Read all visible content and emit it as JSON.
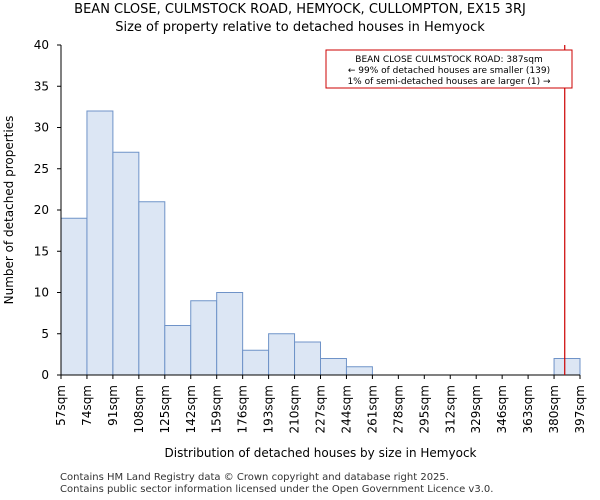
{
  "title": "BEAN CLOSE, CULMSTOCK ROAD, HEMYOCK, CULLOMPTON, EX15 3RJ",
  "subtitle": "Size of property relative to detached houses in Hemyock",
  "footer": {
    "line1": "Contains HM Land Registry data © Crown copyright and database right 2025.",
    "line2": "Contains public sector information licensed under the Open Government Licence v3.0."
  },
  "colors": {
    "bar_fill": "#dce6f4",
    "bar_stroke": "#6f93c8",
    "marker": "#cc0000",
    "axis": "#000000"
  },
  "chart_data": {
    "type": "bar",
    "xlabel": "Distribution of detached houses by size in Hemyock",
    "ylabel": "Number of detached properties",
    "ylim": [
      0,
      40
    ],
    "yticks": [
      0,
      5,
      10,
      15,
      20,
      25,
      30,
      35,
      40
    ],
    "bin_edges": [
      57,
      74,
      91,
      108,
      125,
      142,
      159,
      176,
      193,
      210,
      227,
      244,
      261,
      278,
      295,
      312,
      329,
      346,
      363,
      380,
      397
    ],
    "xtick_labels": [
      "57sqm",
      "74sqm",
      "91sqm",
      "108sqm",
      "125sqm",
      "142sqm",
      "159sqm",
      "176sqm",
      "193sqm",
      "210sqm",
      "227sqm",
      "244sqm",
      "261sqm",
      "278sqm",
      "295sqm",
      "312sqm",
      "329sqm",
      "346sqm",
      "363sqm",
      "380sqm",
      "397sqm"
    ],
    "values": [
      19,
      32,
      27,
      21,
      6,
      9,
      10,
      3,
      5,
      4,
      2,
      1,
      0,
      0,
      0,
      0,
      0,
      0,
      0,
      2
    ],
    "marker_x": 387,
    "annotation": {
      "line1": "BEAN CLOSE CULMSTOCK ROAD: 387sqm",
      "line2": "← 99% of detached houses are smaller (139)",
      "line3": "1% of semi-detached houses are larger (1) →"
    },
    "grid": false,
    "legend": "none"
  }
}
